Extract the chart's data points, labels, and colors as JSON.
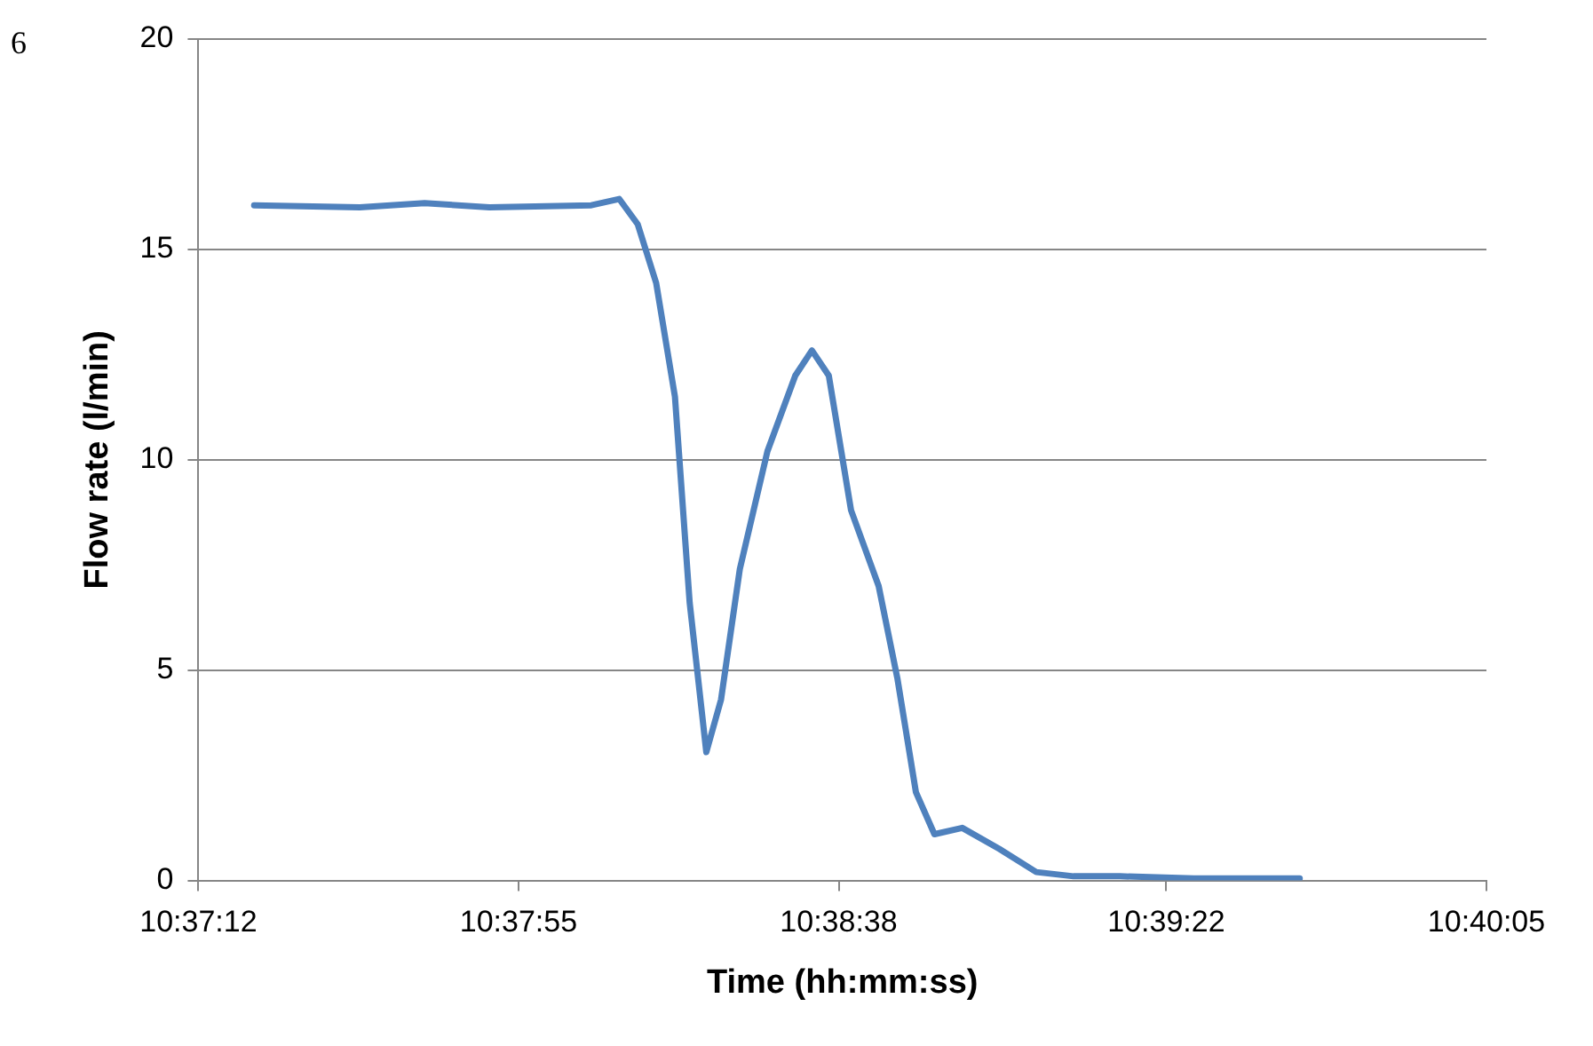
{
  "chart_data": {
    "type": "line",
    "xlabel": "Time (hh:mm:ss)",
    "ylabel": "Flow rate (l/min)",
    "annotations": [
      "6"
    ],
    "x": [
      10.62208,
      10.62602,
      10.62844,
      10.63086,
      10.63466,
      10.6357,
      10.63639,
      10.63708,
      10.63778,
      10.63833,
      10.63895,
      10.6395,
      10.6402,
      10.64123,
      10.64227,
      10.64289,
      10.64352,
      10.64435,
      10.64538,
      10.64608,
      10.64677,
      10.64746,
      10.6485,
      10.64988,
      10.65126,
      10.65265,
      10.65438,
      10.65714,
      10.66109
    ],
    "series": [
      {
        "color": "#4f81bd",
        "values": [
          16.05,
          16.0,
          16.1,
          16.0,
          16.05,
          16.2,
          15.6,
          14.2,
          11.5,
          6.6,
          3.05,
          4.3,
          7.4,
          10.2,
          12.0,
          12.6,
          12.0,
          8.8,
          7.0,
          4.8,
          2.1,
          1.1,
          1.25,
          0.75,
          0.2,
          0.1,
          0.1,
          0.05,
          0.05
        ]
      }
    ],
    "xlim": [
      10.62,
      10.668056
    ],
    "xticks": [
      {
        "value": 10.62,
        "label": "10:37:12"
      },
      {
        "value": 10.631944,
        "label": "10:37:55"
      },
      {
        "value": 10.643889,
        "label": "10:38:38"
      },
      {
        "value": 10.656111,
        "label": "10:39:22"
      },
      {
        "value": 10.668056,
        "label": "10:40:05"
      }
    ],
    "ylim": [
      0,
      20
    ],
    "yticks": [
      0,
      5,
      10,
      15,
      20
    ],
    "grid": "y",
    "legend": false,
    "marker": "none",
    "line_style": "solid"
  }
}
